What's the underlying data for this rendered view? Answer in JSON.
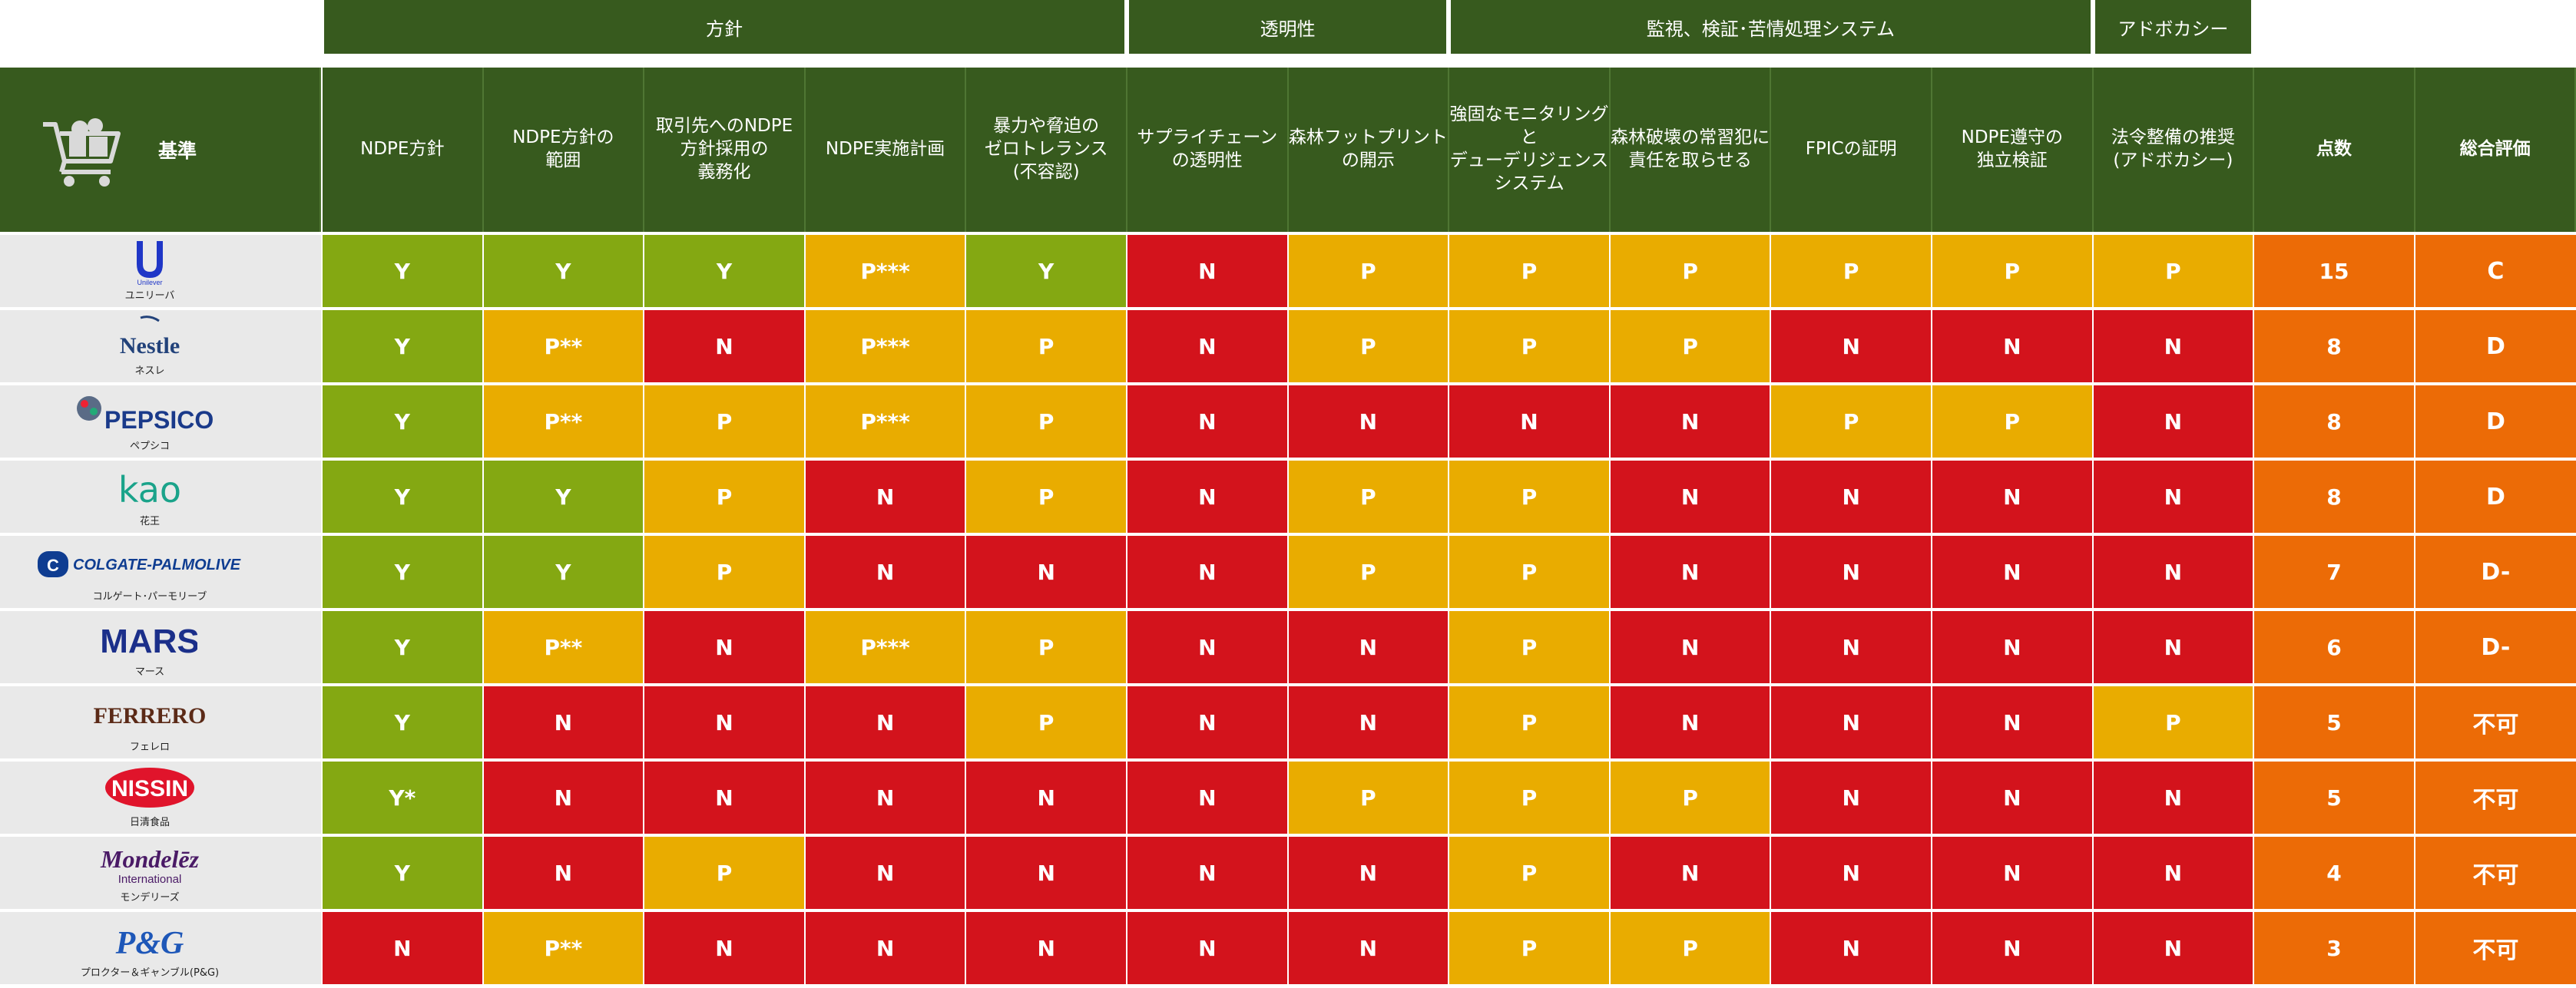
{
  "categories": [
    {
      "label": "方針",
      "start": 1,
      "span": 5
    },
    {
      "label": "透明性",
      "start": 6,
      "span": 2
    },
    {
      "label": "監視、検証･苦情処理システム",
      "start": 8,
      "span": 4
    },
    {
      "label": "アドボカシー",
      "start": 12,
      "span": 1
    }
  ],
  "criteria_label": "基準",
  "chart_data": {
    "type": "table",
    "columns": [
      {
        "label": "NDPE方針"
      },
      {
        "label": "NDPE方針の\n範囲"
      },
      {
        "label": "取引先へのNDPE\n方針採用の\n義務化"
      },
      {
        "label": "NDPE実施計画"
      },
      {
        "label": "暴力や脅迫の\nゼロトレランス\n(不容認)"
      },
      {
        "label": "サプライチェーン\nの透明性"
      },
      {
        "label": "森林フットプリント\nの開示"
      },
      {
        "label": "強固なモニタリングと\nデューデリジェンス\nシステム"
      },
      {
        "label": "森林破壊の常習犯に\n責任を取らせる"
      },
      {
        "label": "FPICの証明"
      },
      {
        "label": "NDPE遵守の\n独立検証"
      },
      {
        "label": "法令整備の推奨\n(アドボカシー)"
      },
      {
        "label": "点数"
      },
      {
        "label": "総合評価"
      }
    ],
    "rows": [
      {
        "company": "ユニリーバ",
        "logo": "Unilever",
        "values": [
          "Y",
          "Y",
          "Y",
          "P***",
          "Y",
          "N",
          "P",
          "P",
          "P",
          "P",
          "P",
          "P"
        ],
        "score": "15",
        "grade": "C"
      },
      {
        "company": "ネスレ",
        "logo": "Nestle",
        "values": [
          "Y",
          "P**",
          "N",
          "P***",
          "P",
          "N",
          "P",
          "P",
          "P",
          "N",
          "N",
          "N"
        ],
        "score": "8",
        "grade": "D"
      },
      {
        "company": "ペプシコ",
        "logo": "PEPSICO",
        "values": [
          "Y",
          "P**",
          "P",
          "P***",
          "P",
          "N",
          "N",
          "N",
          "N",
          "P",
          "P",
          "N"
        ],
        "score": "8",
        "grade": "D"
      },
      {
        "company": "花王",
        "logo": "kao",
        "values": [
          "Y",
          "Y",
          "P",
          "N",
          "P",
          "N",
          "P",
          "P",
          "N",
          "N",
          "N",
          "N"
        ],
        "score": "8",
        "grade": "D"
      },
      {
        "company": "コルゲート･パーモリーブ",
        "logo": "COLGATE-PALMOLIVE",
        "values": [
          "Y",
          "Y",
          "P",
          "N",
          "N",
          "N",
          "P",
          "P",
          "N",
          "N",
          "N",
          "N"
        ],
        "score": "7",
        "grade": "D-"
      },
      {
        "company": "マース",
        "logo": "MARS",
        "values": [
          "Y",
          "P**",
          "N",
          "P***",
          "P",
          "N",
          "N",
          "P",
          "N",
          "N",
          "N",
          "N"
        ],
        "score": "6",
        "grade": "D-"
      },
      {
        "company": "フェレロ",
        "logo": "FERRERO",
        "values": [
          "Y",
          "N",
          "N",
          "N",
          "P",
          "N",
          "N",
          "P",
          "N",
          "N",
          "N",
          "P"
        ],
        "score": "5",
        "grade": "不可"
      },
      {
        "company": "日清食品",
        "logo": "NISSIN",
        "values": [
          "Y*",
          "N",
          "N",
          "N",
          "N",
          "N",
          "P",
          "P",
          "P",
          "N",
          "N",
          "N"
        ],
        "score": "5",
        "grade": "不可"
      },
      {
        "company": "モンデリーズ",
        "logo": "Mondelēz",
        "logo_sub": "International",
        "values": [
          "Y",
          "N",
          "P",
          "N",
          "N",
          "N",
          "N",
          "P",
          "N",
          "N",
          "N",
          "N"
        ],
        "score": "4",
        "grade": "不可"
      },
      {
        "company": "プロクター＆ギャンブル(P&G)",
        "logo": "P&G",
        "values": [
          "N",
          "P**",
          "N",
          "N",
          "N",
          "N",
          "N",
          "P",
          "P",
          "N",
          "N",
          "N"
        ],
        "score": "3",
        "grade": "不可"
      }
    ]
  },
  "colors": {
    "Y": "#84a812",
    "P": "#e9ac00",
    "N": "#d3131c",
    "score": "#ec6b06",
    "header": "#375a1e"
  },
  "icons": {
    "criteria": "shopping-cart-icon"
  }
}
